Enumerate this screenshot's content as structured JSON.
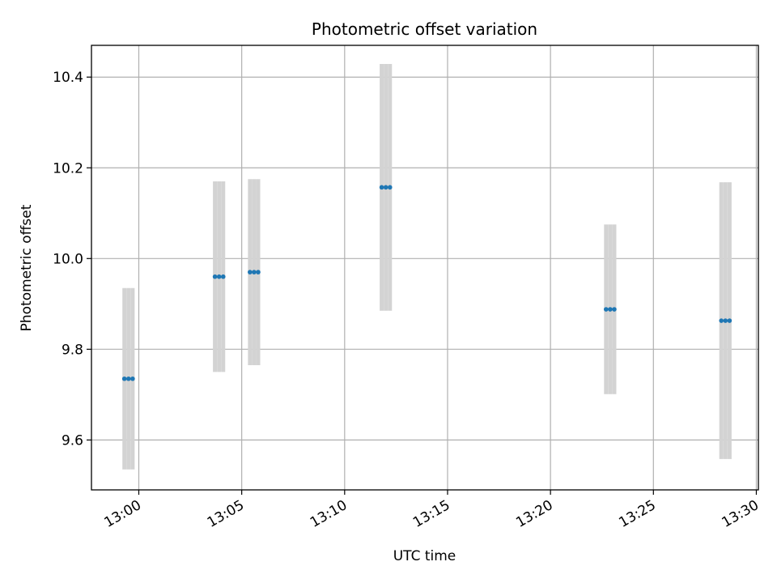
{
  "chart_data": {
    "type": "scatter",
    "title": "Photometric offset variation",
    "xlabel": "UTC time",
    "ylabel": "Photometric offset",
    "x_unit": "UTC time (HH:MM)",
    "xlim": [
      "12:57:42",
      "13:30:06"
    ],
    "ylim": [
      9.49,
      10.47
    ],
    "x_ticks": [
      "13:00",
      "13:05",
      "13:10",
      "13:15",
      "13:20",
      "13:25",
      "13:30"
    ],
    "y_ticks": [
      9.6,
      9.8,
      10.0,
      10.2,
      10.4
    ],
    "grid": true,
    "marker_color": "#1f77b4",
    "errorbar_color": "#d3d3d3",
    "groups": [
      {
        "times": [
          "12:59:18",
          "12:59:30",
          "12:59:42"
        ],
        "y": 9.735,
        "yerr": 0.2
      },
      {
        "times": [
          "13:03:42",
          "13:03:54",
          "13:04:06"
        ],
        "y": 9.96,
        "yerr": 0.21
      },
      {
        "times": [
          "13:05:24",
          "13:05:36",
          "13:05:48"
        ],
        "y": 9.97,
        "yerr": 0.205
      },
      {
        "times": [
          "13:11:48",
          "13:12:00",
          "13:12:12"
        ],
        "y": 10.157,
        "yerr": 0.272
      },
      {
        "times": [
          "13:22:42",
          "13:22:54",
          "13:23:06"
        ],
        "y": 9.888,
        "yerr": 0.187
      },
      {
        "times": [
          "13:28:18",
          "13:28:30",
          "13:28:42"
        ],
        "y": 9.863,
        "yerr": 0.305
      }
    ]
  }
}
